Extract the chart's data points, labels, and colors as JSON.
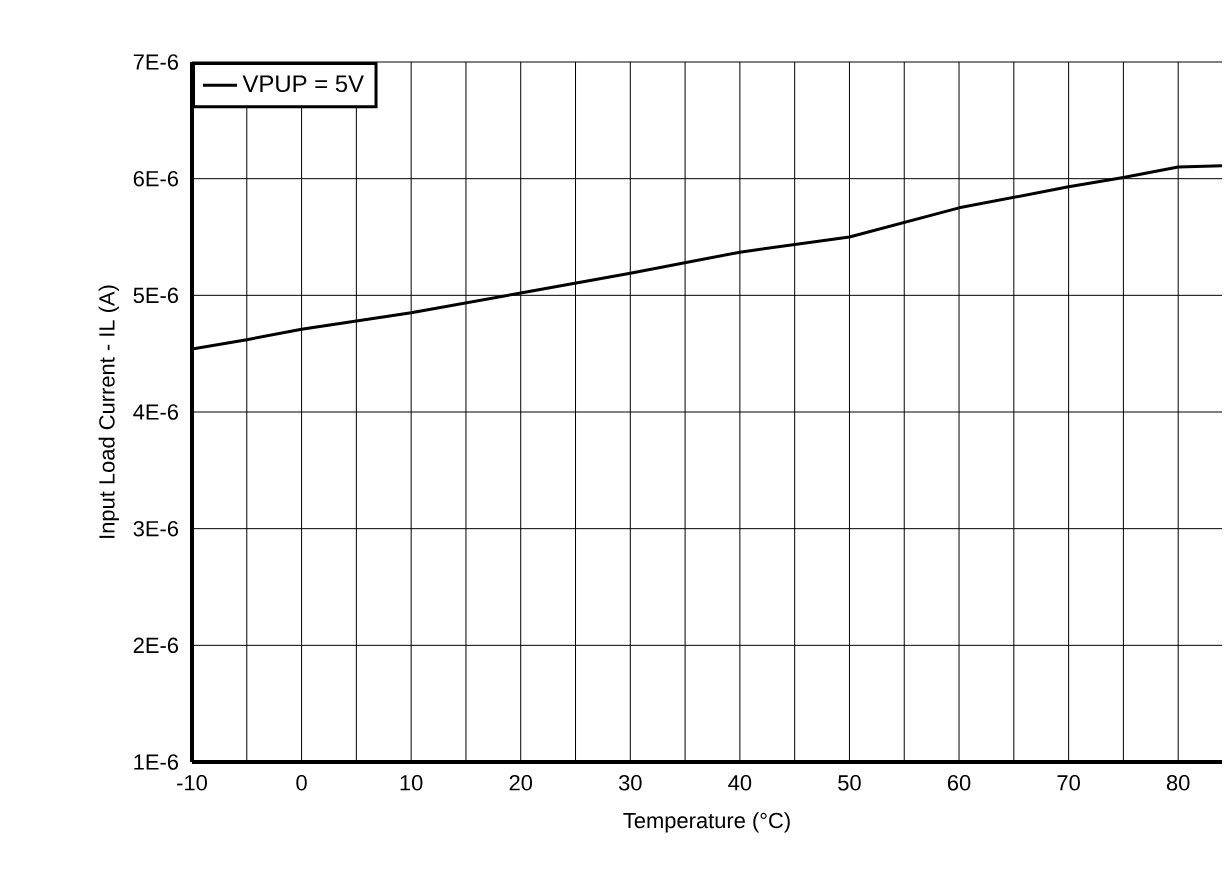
{
  "chart_data": {
    "type": "line",
    "xlabel": "Temperature (°C)",
    "ylabel": "Input Load Current - IL (A)",
    "x": [
      -10,
      -5,
      0,
      10,
      20,
      30,
      40,
      50,
      60,
      70,
      75,
      80,
      84
    ],
    "series": [
      {
        "name": "VPUP = 5V",
        "color": "#000000",
        "values": [
          4.54e-06,
          4.62e-06,
          4.71e-06,
          4.85e-06,
          5.02e-06,
          5.19e-06,
          5.37e-06,
          5.5e-06,
          5.75e-06,
          5.93e-06,
          6.01e-06,
          6.1e-06,
          6.11e-06
        ]
      }
    ],
    "xlim": [
      -10,
      84
    ],
    "xticks": [
      -10,
      {
        "value": -5,
        "label": null
      },
      0,
      {
        "value": 5,
        "label": null
      },
      10,
      {
        "value": 15,
        "label": null
      },
      20,
      {
        "value": 25,
        "label": null
      },
      30,
      {
        "value": 35,
        "label": null
      },
      40,
      {
        "value": 45,
        "label": null
      },
      50,
      {
        "value": 55,
        "label": null
      },
      60,
      {
        "value": 65,
        "label": null
      },
      70,
      {
        "value": 75,
        "label": null
      },
      80
    ],
    "ylim": [
      1e-06,
      7e-06
    ],
    "yticks": [
      {
        "value": 1e-06,
        "label": "1E-6"
      },
      {
        "value": 2e-06,
        "label": "2E-6"
      },
      {
        "value": 3e-06,
        "label": "3E-6"
      },
      {
        "value": 4e-06,
        "label": "4E-6"
      },
      {
        "value": 5e-06,
        "label": "5E-6"
      },
      {
        "value": 6e-06,
        "label": "6E-6"
      },
      {
        "value": 7e-06,
        "label": "7E-6"
      }
    ],
    "grid": true,
    "legend": "top left",
    "line_style": "solid"
  }
}
